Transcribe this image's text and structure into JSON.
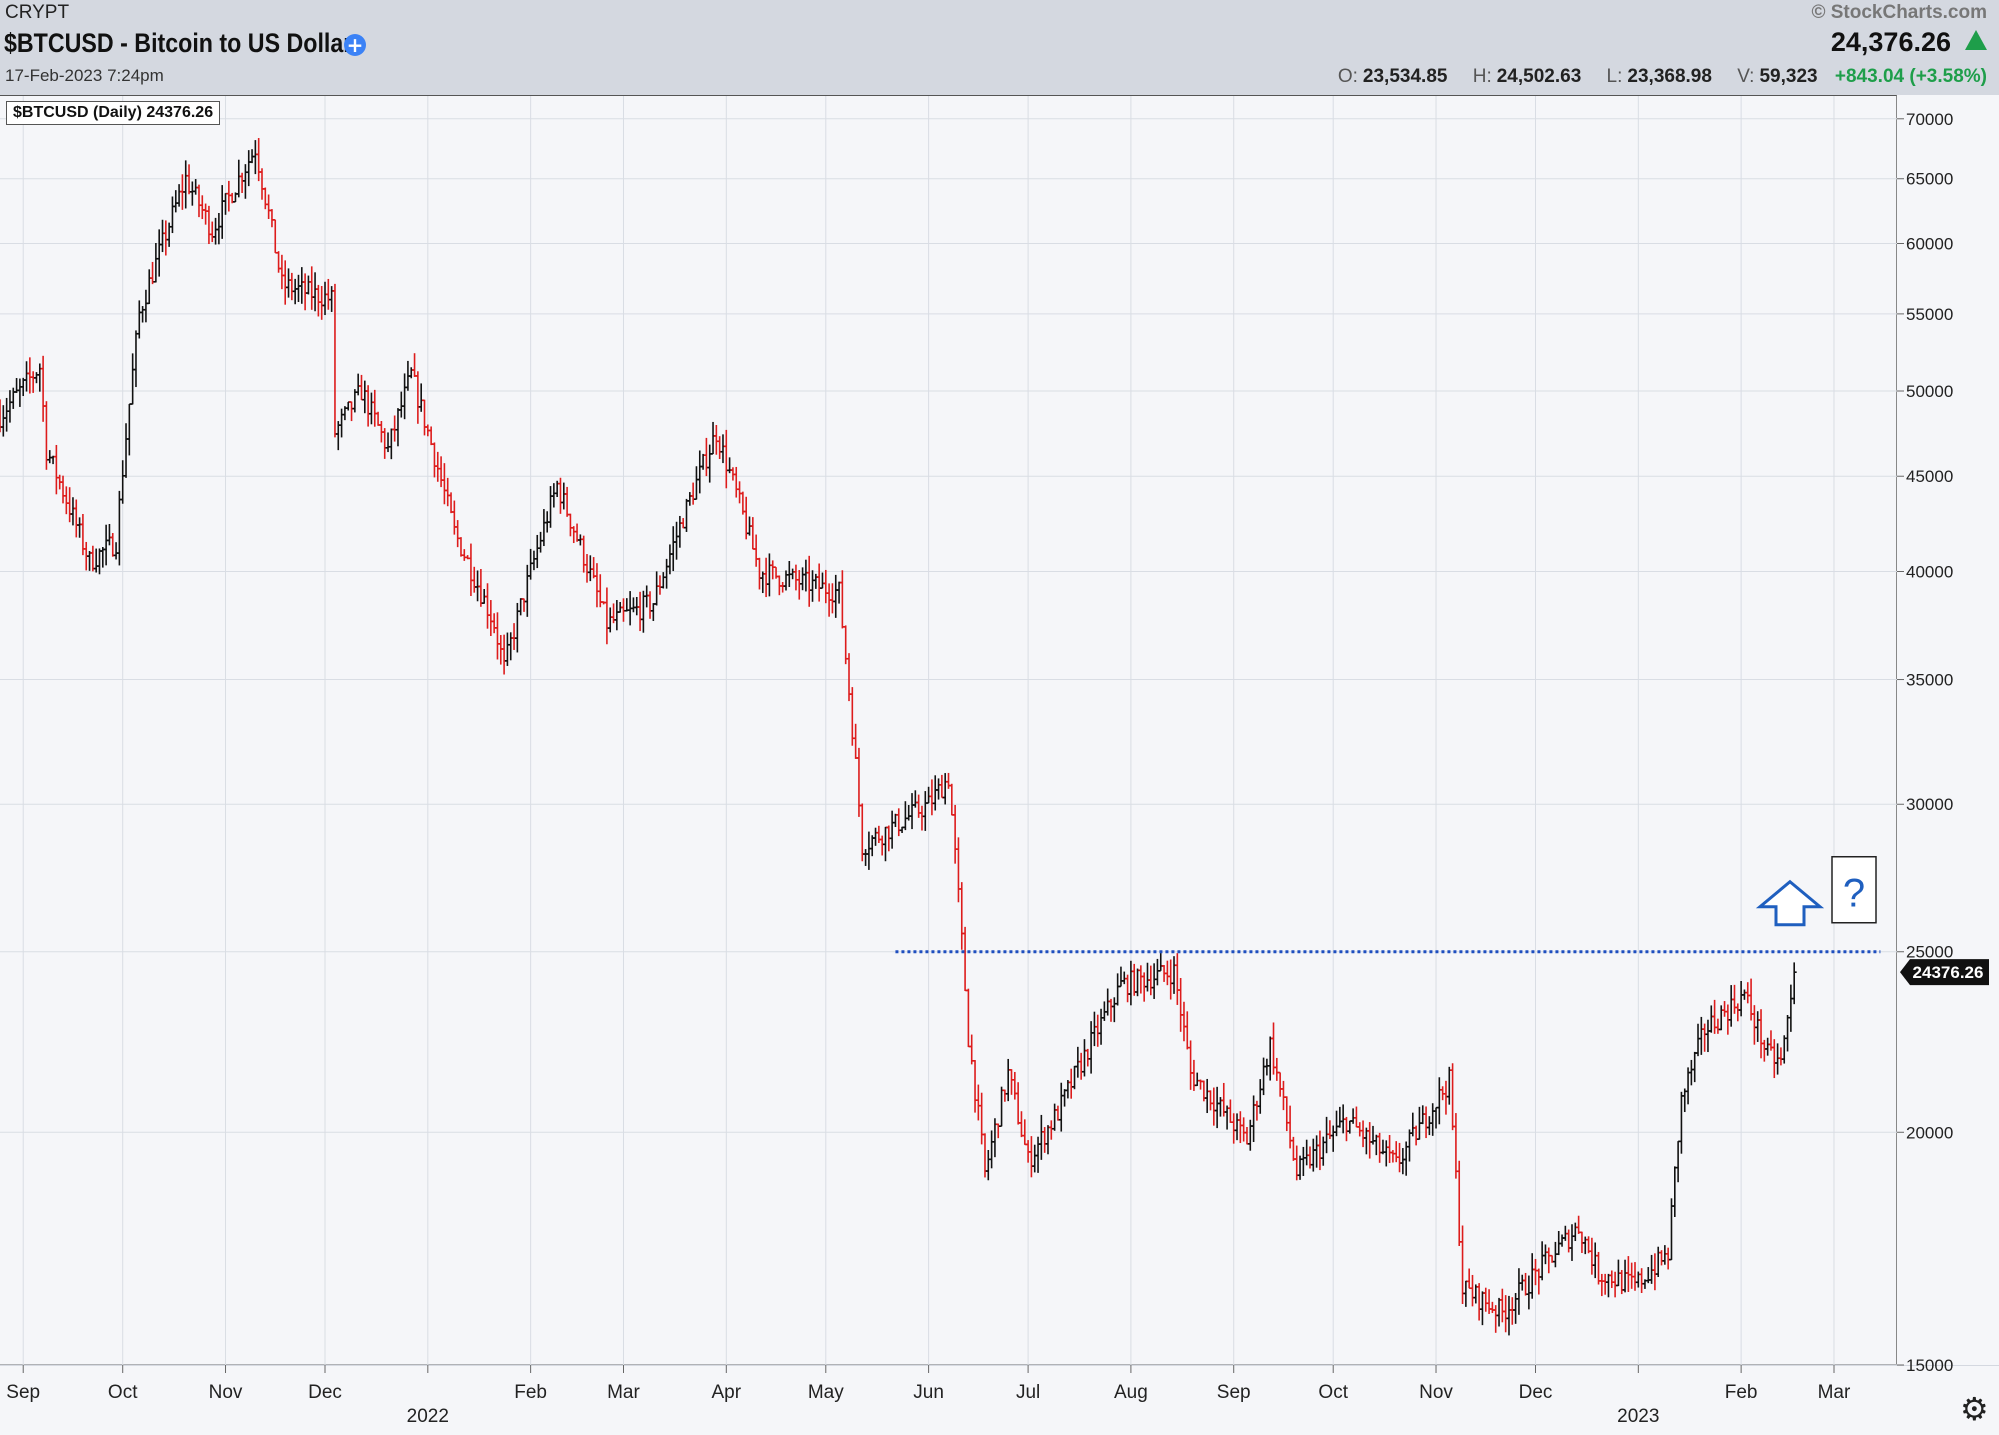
{
  "header": {
    "exchange": "CRYPT",
    "title": "$BTCUSD - Bitcoin to US Dollar",
    "plus_icon": "plus-circle-icon",
    "date": "17-Feb-2023 7:24pm",
    "source": "© StockCharts.com",
    "last_price": "24,376.26",
    "direction_icon": "up-triangle-icon",
    "open_label": "O:",
    "open": "23,534.85",
    "high_label": "H:",
    "high": "24,502.63",
    "low_label": "L:",
    "low": "23,368.98",
    "volume_label": "V:",
    "volume": "59,323",
    "change": "+843.04 (+3.58%)"
  },
  "legend_label": "$BTCUSD (Daily) 24376.26",
  "colors": {
    "up_bar": "#111111",
    "down_bar": "#dd1c1c",
    "resistance_line": "#1f4fbf",
    "arrow": "#1f5fbf",
    "price_tag_bg": "#111111",
    "change_green": "#1e9e4a"
  },
  "annotations": {
    "arrow_icon": "up-arrow-icon",
    "question_mark": "?"
  },
  "chart_data": {
    "type": "ohlc",
    "scale": "log",
    "ylim": [
      15000,
      72000
    ],
    "y_ticks": [
      15000,
      20000,
      25000,
      30000,
      35000,
      40000,
      45000,
      50000,
      55000,
      60000,
      65000,
      70000
    ],
    "x_range": [
      "2021-08-25",
      "2023-03-20"
    ],
    "month_ticks": [
      {
        "date": "2021-09-01",
        "label": "Sep"
      },
      {
        "date": "2021-10-01",
        "label": "Oct"
      },
      {
        "date": "2021-11-01",
        "label": "Nov"
      },
      {
        "date": "2021-12-01",
        "label": "Dec"
      },
      {
        "date": "2022-01-01",
        "label": ""
      },
      {
        "date": "2022-02-01",
        "label": "Feb"
      },
      {
        "date": "2022-03-01",
        "label": "Mar"
      },
      {
        "date": "2022-04-01",
        "label": "Apr"
      },
      {
        "date": "2022-05-01",
        "label": "May"
      },
      {
        "date": "2022-06-01",
        "label": "Jun"
      },
      {
        "date": "2022-07-01",
        "label": "Jul"
      },
      {
        "date": "2022-08-01",
        "label": "Aug"
      },
      {
        "date": "2022-09-01",
        "label": "Sep"
      },
      {
        "date": "2022-10-01",
        "label": "Oct"
      },
      {
        "date": "2022-11-01",
        "label": "Nov"
      },
      {
        "date": "2022-12-01",
        "label": "Dec"
      },
      {
        "date": "2023-01-01",
        "label": ""
      },
      {
        "date": "2023-02-01",
        "label": "Feb"
      },
      {
        "date": "2023-03-01",
        "label": "Mar"
      }
    ],
    "year_labels": [
      {
        "date": "2022-01-01",
        "label": "2022"
      },
      {
        "date": "2023-01-01",
        "label": "2023"
      }
    ],
    "price_path": [
      [
        "2021-08-25",
        48500
      ],
      [
        "2021-09-06",
        51500
      ],
      [
        "2021-09-08",
        46500
      ],
      [
        "2021-09-21",
        40500
      ],
      [
        "2021-09-29",
        41500
      ],
      [
        "2021-10-06",
        55000
      ],
      [
        "2021-10-20",
        65000
      ],
      [
        "2021-10-28",
        61000
      ],
      [
        "2021-11-10",
        67500
      ],
      [
        "2021-11-18",
        57000
      ],
      [
        "2021-12-03",
        56000
      ],
      [
        "2021-12-04",
        47500
      ],
      [
        "2021-12-12",
        50000
      ],
      [
        "2021-12-20",
        46500
      ],
      [
        "2021-12-27",
        51000
      ],
      [
        "2022-01-09",
        42000
      ],
      [
        "2022-01-21",
        37500
      ],
      [
        "2022-01-24",
        35500
      ],
      [
        "2022-02-09",
        44500
      ],
      [
        "2022-02-24",
        37500
      ],
      [
        "2022-03-10",
        38500
      ],
      [
        "2022-03-29",
        47500
      ],
      [
        "2022-04-11",
        40000
      ],
      [
        "2022-05-05",
        39000
      ],
      [
        "2022-05-12",
        28500
      ],
      [
        "2022-06-01",
        30000
      ],
      [
        "2022-06-07",
        31000
      ],
      [
        "2022-06-13",
        22500
      ],
      [
        "2022-06-18",
        19000
      ],
      [
        "2022-06-25",
        21500
      ],
      [
        "2022-07-01",
        19300
      ],
      [
        "2022-07-10",
        20500
      ],
      [
        "2022-07-29",
        24000
      ],
      [
        "2022-08-14",
        24400
      ],
      [
        "2022-08-19",
        21500
      ],
      [
        "2022-09-05",
        19800
      ],
      [
        "2022-09-12",
        22300
      ],
      [
        "2022-09-20",
        19000
      ],
      [
        "2022-10-05",
        20300
      ],
      [
        "2022-10-20",
        19200
      ],
      [
        "2022-11-05",
        21300
      ],
      [
        "2022-11-09",
        16500
      ],
      [
        "2022-11-21",
        16000
      ],
      [
        "2022-12-05",
        17100
      ],
      [
        "2022-12-14",
        17800
      ],
      [
        "2022-12-20",
        16800
      ],
      [
        "2022-12-31",
        16550
      ],
      [
        "2023-01-10",
        17200
      ],
      [
        "2023-01-14",
        20800
      ],
      [
        "2023-01-21",
        22700
      ],
      [
        "2023-02-02",
        23700
      ],
      [
        "2023-02-09",
        22000
      ],
      [
        "2023-02-13",
        21800
      ],
      [
        "2023-02-16",
        23500
      ],
      [
        "2023-02-17",
        24376
      ]
    ],
    "resistance": {
      "value": 25000,
      "start": "2022-05-22",
      "end": "2023-03-15",
      "style": "dotted"
    },
    "last_value": 24376.26,
    "last_label": "24376.26"
  }
}
